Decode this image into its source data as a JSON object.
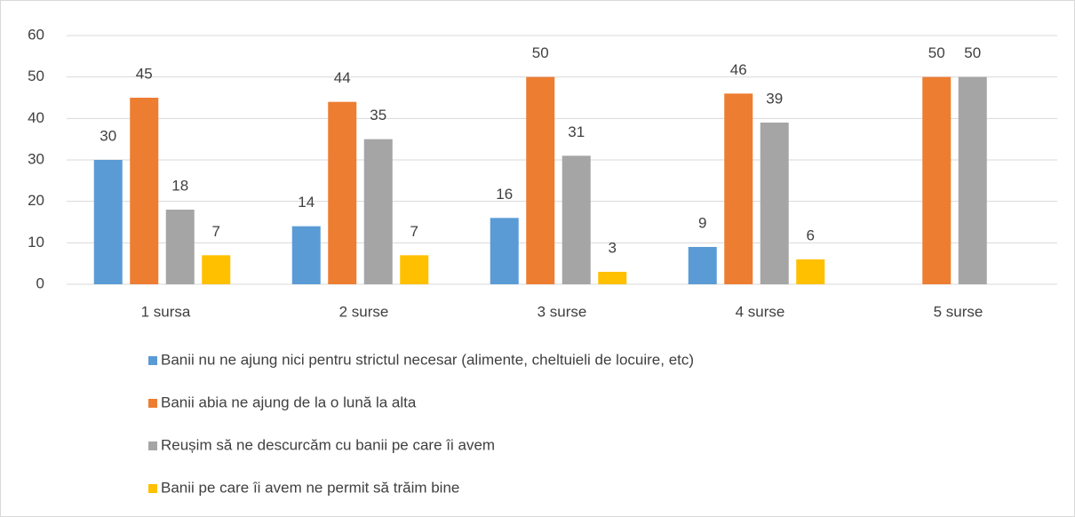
{
  "chart_data": {
    "type": "bar",
    "categories": [
      "1 sursa",
      "2 surse",
      "3 surse",
      "4 surse",
      "5 surse"
    ],
    "series": [
      {
        "name": "Banii nu ne ajung nici pentru strictul necesar (alimente, cheltuieli de locuire, etc)",
        "color": "#5b9bd5",
        "values": [
          30,
          14,
          16,
          9,
          null
        ]
      },
      {
        "name": "Banii abia ne ajung de la o lună la alta",
        "color": "#ed7d31",
        "values": [
          45,
          44,
          50,
          46,
          50
        ]
      },
      {
        "name": "Reușim să ne descurcăm cu banii pe care îi avem",
        "color": "#a5a5a5",
        "values": [
          18,
          35,
          31,
          39,
          50
        ]
      },
      {
        "name": "Banii pe care îi avem ne permit să trăim bine",
        "color": "#ffc000",
        "values": [
          7,
          7,
          3,
          6,
          null
        ]
      }
    ],
    "ylim": [
      0,
      60
    ],
    "yticks": [
      0,
      10,
      20,
      30,
      40,
      50,
      60
    ],
    "grid": true,
    "legend": "bottom"
  }
}
